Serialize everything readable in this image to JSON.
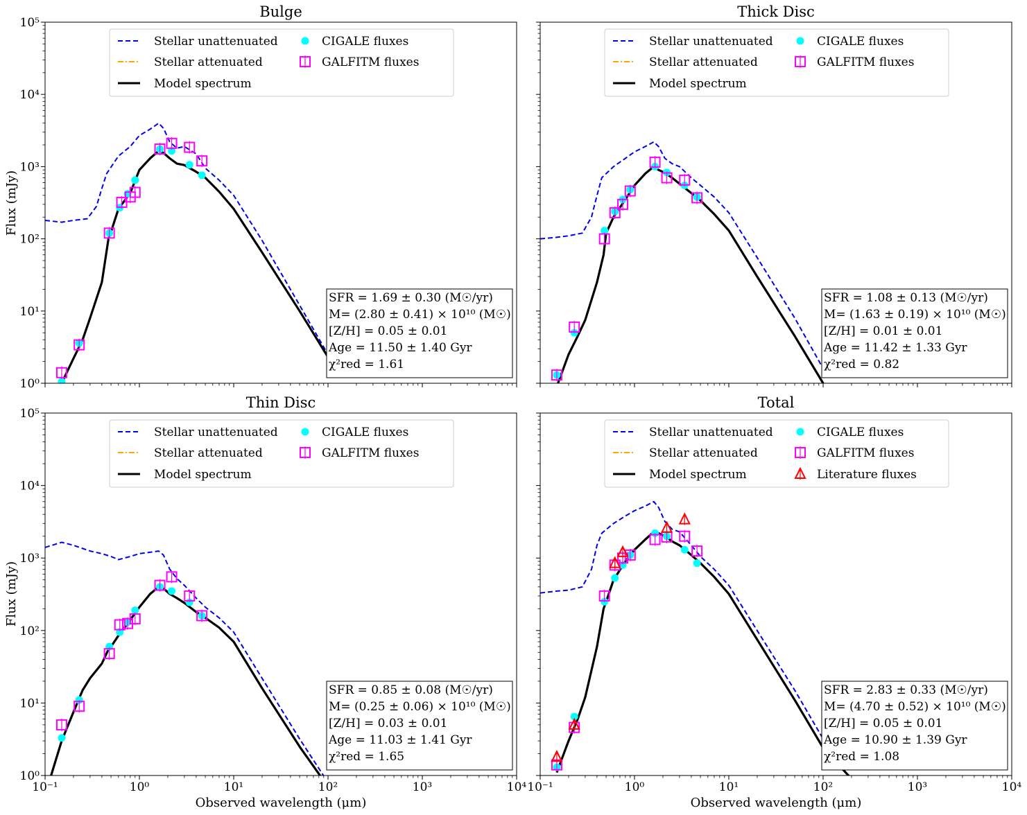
{
  "figure": {
    "ylabel": "Flux (mJy)",
    "xlabel": "Observed wavelength (μm)",
    "xlim": [
      0.1,
      10000
    ],
    "ylim": [
      1,
      100000
    ],
    "xscale": "log",
    "yscale": "log",
    "x_tick_labels": [
      "10⁻¹",
      "10⁰",
      "10¹",
      "10²",
      "10³",
      "10⁴"
    ],
    "y_tick_labels": [
      "10⁰",
      "10¹",
      "10²",
      "10³",
      "10⁴",
      "10⁵"
    ]
  },
  "legend_labels": {
    "unatt": "Stellar unattenuated",
    "att": "Stellar attenuated",
    "model": "Model spectrum",
    "cigale": "CIGALE fluxes",
    "galfitm": "GALFITM fluxes",
    "lit": "Literature fluxes"
  },
  "colors": {
    "unatt": "#0000ee",
    "att": "#ffa500",
    "model": "#000000",
    "cigale": "#00ffff",
    "galfitm": "#ff00ff",
    "lit": "#ff0000"
  },
  "chart_data": [
    {
      "type": "line",
      "title": "Bulge",
      "unattenuated": {
        "x": [
          0.1,
          0.15,
          0.2,
          0.28,
          0.35,
          0.4,
          0.45,
          0.6,
          0.8,
          1.0,
          1.3,
          1.6,
          1.8,
          2.1,
          2.5,
          3.0,
          4.0,
          5.0,
          7.0,
          10,
          20,
          50,
          100
        ],
        "y": [
          180,
          170,
          180,
          190,
          280,
          500,
          800,
          1400,
          1900,
          2700,
          3300,
          4000,
          3400,
          2200,
          1800,
          1900,
          1500,
          950,
          650,
          400,
          95,
          12,
          2.5
        ]
      },
      "model": {
        "x": [
          0.15,
          0.2,
          0.25,
          0.3,
          0.4,
          0.47,
          0.5,
          0.6,
          0.8,
          1.0,
          1.3,
          1.6,
          1.8,
          2.1,
          2.5,
          3.0,
          4.0,
          5.0,
          7.0,
          10,
          20,
          50,
          100
        ],
        "y": [
          1.0,
          2.2,
          4.0,
          8.0,
          25,
          100,
          125,
          260,
          430,
          900,
          1300,
          1650,
          1550,
          1300,
          1100,
          1050,
          850,
          700,
          450,
          260,
          65,
          10,
          2.3
        ]
      },
      "cigale_fluxes": {
        "x": [
          0.15,
          0.23,
          0.48,
          0.62,
          0.75,
          0.9,
          1.65,
          2.2,
          3.4,
          4.6
        ],
        "y": [
          1.05,
          3.6,
          120,
          270,
          420,
          650,
          1750,
          1650,
          1060,
          760
        ]
      },
      "galfitm_fluxes": {
        "x": [
          0.15,
          0.23,
          0.48,
          0.65,
          0.8,
          0.9,
          1.65,
          2.2,
          3.4,
          4.6
        ],
        "y": [
          1.4,
          3.4,
          120,
          320,
          380,
          440,
          1750,
          2100,
          1850,
          1200
        ]
      },
      "annotations": [
        "SFR = 1.69 ± 0.30 (M☉/yr)",
        "M= (2.80 ± 0.41) × 10¹⁰ (M☉)",
        "[Z/H] = 0.05 ± 0.01",
        "Age = 11.50 ± 1.40 Gyr",
        "χ²red = 1.61"
      ]
    },
    {
      "type": "line",
      "title": "Thick Disc",
      "unattenuated": {
        "x": [
          0.1,
          0.15,
          0.2,
          0.28,
          0.35,
          0.4,
          0.45,
          0.6,
          0.8,
          1.0,
          1.3,
          1.6,
          1.8,
          2.1,
          2.5,
          3.0,
          4.0,
          5.0,
          7.0,
          10,
          20,
          50,
          100
        ],
        "y": [
          100,
          105,
          110,
          120,
          200,
          400,
          700,
          1000,
          1300,
          1600,
          1900,
          2200,
          1900,
          1300,
          1100,
          1000,
          700,
          550,
          380,
          230,
          55,
          8,
          1.6
        ]
      },
      "model": {
        "x": [
          0.15,
          0.2,
          0.25,
          0.3,
          0.4,
          0.47,
          0.5,
          0.6,
          0.8,
          1.0,
          1.3,
          1.6,
          1.8,
          2.1,
          2.5,
          3.0,
          4.0,
          5.0,
          7.0,
          10,
          20,
          50,
          100
        ],
        "y": [
          0.9,
          2.5,
          4.5,
          7.5,
          25,
          60,
          120,
          200,
          350,
          550,
          800,
          1000,
          900,
          820,
          700,
          580,
          430,
          340,
          220,
          130,
          30,
          4.5,
          1.0
        ]
      },
      "cigale_fluxes": {
        "x": [
          0.15,
          0.23,
          0.48,
          0.62,
          0.75,
          0.9,
          1.65,
          2.2,
          3.4,
          4.6
        ],
        "y": [
          1.3,
          5.0,
          130,
          240,
          350,
          480,
          1000,
          830,
          550,
          380
        ]
      },
      "galfitm_fluxes": {
        "x": [
          0.15,
          0.23,
          0.48,
          0.62,
          0.75,
          0.9,
          1.65,
          2.2,
          3.4,
          4.6
        ],
        "y": [
          1.3,
          6.0,
          100,
          230,
          300,
          460,
          1150,
          700,
          650,
          370
        ]
      },
      "annotations": [
        "SFR = 1.08 ± 0.13 (M☉/yr)",
        "M= (1.63 ± 0.19) × 10¹⁰ (M☉)",
        "[Z/H] = 0.01 ± 0.01",
        "Age = 11.42 ± 1.33 Gyr",
        "χ²red = 0.82"
      ]
    },
    {
      "type": "line",
      "title": "Thin Disc",
      "unattenuated": {
        "x": [
          0.1,
          0.15,
          0.2,
          0.3,
          0.4,
          0.5,
          0.6,
          0.8,
          1.0,
          1.3,
          1.6,
          1.8,
          2.1,
          2.5,
          3.0,
          4.0,
          5.0,
          7.0,
          10,
          20,
          50,
          100
        ],
        "y": [
          1400,
          1650,
          1500,
          1250,
          1150,
          1050,
          950,
          1050,
          1150,
          1200,
          1250,
          1100,
          700,
          520,
          420,
          280,
          210,
          150,
          95,
          22,
          3.2,
          0.8
        ]
      },
      "model": {
        "x": [
          0.11,
          0.15,
          0.2,
          0.25,
          0.3,
          0.4,
          0.47,
          0.5,
          0.6,
          0.8,
          1.0,
          1.3,
          1.6,
          1.8,
          2.1,
          2.5,
          3.0,
          4.0,
          5.0,
          7.0,
          10,
          20,
          50,
          100
        ],
        "y": [
          0.8,
          3.0,
          7.5,
          15,
          22,
          35,
          55,
          60,
          85,
          140,
          210,
          320,
          400,
          380,
          320,
          280,
          240,
          180,
          150,
          110,
          70,
          16,
          2.5,
          0.7
        ]
      },
      "cigale_fluxes": {
        "x": [
          0.15,
          0.23,
          0.48,
          0.62,
          0.75,
          0.9,
          1.65,
          2.2,
          3.4,
          4.6
        ],
        "y": [
          3.3,
          11,
          60,
          95,
          130,
          190,
          400,
          350,
          245,
          160
        ]
      },
      "galfitm_fluxes": {
        "x": [
          0.15,
          0.23,
          0.48,
          0.62,
          0.75,
          0.9,
          1.65,
          2.2,
          3.4,
          4.6
        ],
        "y": [
          5.0,
          9.0,
          48,
          120,
          125,
          145,
          420,
          550,
          300,
          160
        ]
      },
      "annotations": [
        "SFR = 0.85 ± 0.08 (M☉/yr)",
        "M= (0.25 ± 0.06) × 10¹⁰ (M☉)",
        "[Z/H] = 0.03 ± 0.01",
        "Age = 11.03 ± 1.41 Gyr",
        "χ²red = 1.65"
      ]
    },
    {
      "type": "line",
      "title": "Total",
      "unattenuated": {
        "x": [
          0.1,
          0.15,
          0.2,
          0.28,
          0.35,
          0.4,
          0.45,
          0.6,
          0.8,
          1.0,
          1.3,
          1.6,
          1.8,
          2.1,
          2.5,
          3.0,
          4.0,
          5.0,
          7.0,
          10,
          20,
          50,
          100
        ],
        "y": [
          330,
          350,
          360,
          400,
          700,
          1500,
          2200,
          3000,
          3800,
          4500,
          5200,
          6000,
          5000,
          3200,
          2500,
          2300,
          1500,
          1050,
          700,
          420,
          100,
          15,
          3.2
        ]
      },
      "model": {
        "x": [
          0.15,
          0.2,
          0.25,
          0.3,
          0.4,
          0.47,
          0.5,
          0.6,
          0.8,
          1.0,
          1.3,
          1.6,
          1.8,
          2.1,
          2.5,
          3.0,
          4.0,
          5.0,
          7.0,
          10,
          20,
          50,
          100,
          200
        ],
        "y": [
          1.1,
          3.0,
          6.0,
          12,
          60,
          200,
          250,
          500,
          900,
          1300,
          1800,
          2300,
          2200,
          2000,
          1700,
          1500,
          1100,
          850,
          550,
          320,
          75,
          11,
          2.4,
          0.9
        ]
      },
      "cigale_fluxes": {
        "x": [
          0.15,
          0.23,
          0.48,
          0.62,
          0.75,
          0.9,
          1.65,
          2.2,
          3.4,
          4.6
        ],
        "y": [
          1.3,
          6.5,
          250,
          530,
          800,
          1100,
          2200,
          2000,
          1300,
          850
        ]
      },
      "galfitm_fluxes": {
        "x": [
          0.15,
          0.23,
          0.48,
          0.62,
          0.75,
          0.9,
          1.65,
          2.2,
          3.4,
          4.6
        ],
        "y": [
          1.4,
          4.6,
          300,
          800,
          1000,
          1100,
          1800,
          1950,
          2000,
          1250
        ]
      },
      "literature_fluxes": {
        "x": [
          0.15,
          0.23,
          0.62,
          0.75,
          2.2,
          3.4
        ],
        "y": [
          1.8,
          5.0,
          850,
          1200,
          2600,
          3400
        ]
      },
      "annotations": [
        "SFR = 2.83 ± 0.33 (M☉/yr)",
        "M= (4.70 ± 0.52) × 10¹⁰ (M☉)",
        "[Z/H] = 0.05 ± 0.01",
        "Age = 10.90 ± 1.39 Gyr",
        "χ²red = 1.08"
      ]
    }
  ]
}
